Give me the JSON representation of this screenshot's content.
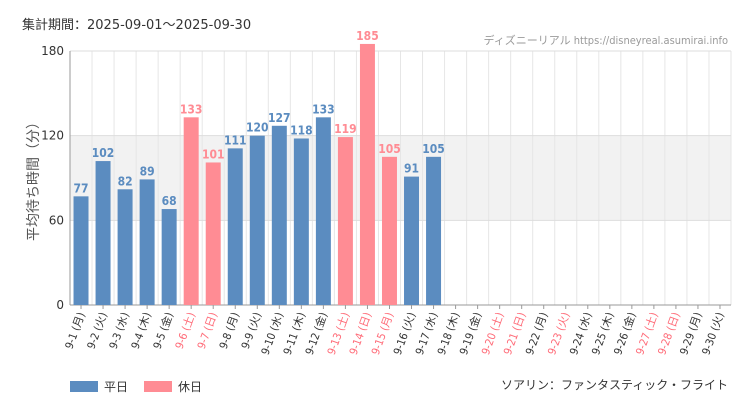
{
  "header": {
    "period_label": "集計期間：2025-09-01～2025-09-30",
    "source": "ディズニーリアル https://disneyreal.asumirai.info"
  },
  "footer": {
    "attraction": "ソアリン：ファンタスティック・フライト"
  },
  "legend": [
    {
      "label": "平日",
      "color": "#5b8cc0"
    },
    {
      "label": "休日",
      "color": "#ff8c94"
    }
  ],
  "colors": {
    "weekday": "#5b8cc0",
    "holiday": "#ff8c94",
    "weekday_tick": "#333333",
    "holiday_tick": "#ff6b78",
    "band": "#f2f2f2"
  },
  "chart_data": {
    "type": "bar",
    "ylabel": "平均待ち時間（分）",
    "ylim": [
      0,
      180
    ],
    "yticks": [
      0,
      60,
      120,
      180
    ],
    "categories": [
      "9-1 (月)",
      "9-2 (火)",
      "9-3 (水)",
      "9-4 (木)",
      "9-5 (金)",
      "9-6 (土)",
      "9-7 (日)",
      "9-8 (月)",
      "9-9 (火)",
      "9-10 (水)",
      "9-11 (木)",
      "9-12 (金)",
      "9-13 (土)",
      "9-14 (日)",
      "9-15 (月)",
      "9-16 (火)",
      "9-17 (水)",
      "9-18 (木)",
      "9-19 (金)",
      "9-20 (土)",
      "9-21 (日)",
      "9-22 (月)",
      "9-23 (火)",
      "9-24 (水)",
      "9-25 (木)",
      "9-26 (金)",
      "9-27 (土)",
      "9-28 (日)",
      "9-29 (月)",
      "9-30 (火)"
    ],
    "day_type": [
      "weekday",
      "weekday",
      "weekday",
      "weekday",
      "weekday",
      "holiday",
      "holiday",
      "weekday",
      "weekday",
      "weekday",
      "weekday",
      "weekday",
      "holiday",
      "holiday",
      "holiday",
      "weekday",
      "weekday",
      "weekday",
      "weekday",
      "holiday",
      "holiday",
      "weekday",
      "holiday",
      "weekday",
      "weekday",
      "weekday",
      "holiday",
      "holiday",
      "weekday",
      "weekday"
    ],
    "values": [
      77,
      102,
      82,
      89,
      68,
      133,
      101,
      111,
      120,
      127,
      118,
      133,
      119,
      185,
      105,
      91,
      105,
      null,
      null,
      null,
      null,
      null,
      null,
      null,
      null,
      null,
      null,
      null,
      null,
      null
    ],
    "grid": true
  }
}
